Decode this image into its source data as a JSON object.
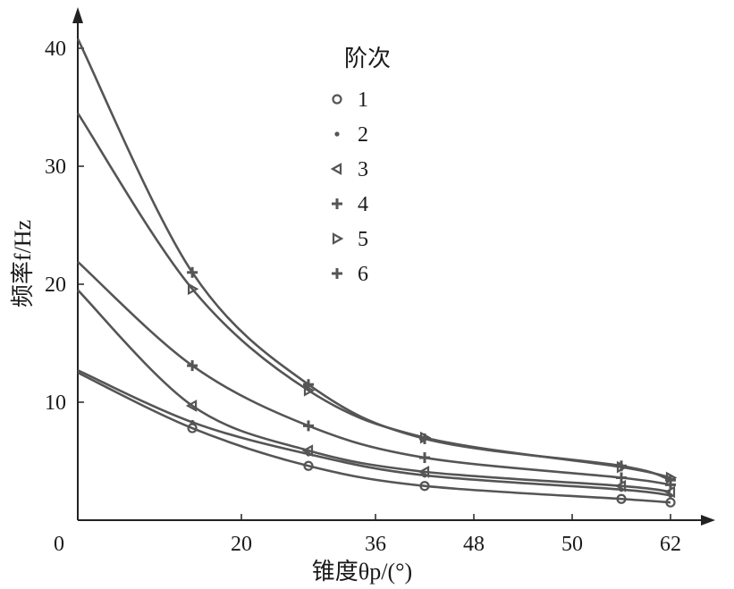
{
  "chart_data": {
    "type": "line",
    "title": "",
    "xlabel": "锥度θp/(°)",
    "ylabel": "频率f/Hz",
    "xlim": [
      0,
      70
    ],
    "ylim": [
      0,
      45
    ],
    "x_ticks": [
      0,
      20,
      36,
      48,
      50,
      62
    ],
    "y_ticks": [
      10,
      20,
      30,
      40
    ],
    "grid": false,
    "legend": {
      "title": "阶次",
      "position": "top-center"
    },
    "series": [
      {
        "name": "1",
        "marker": "circle",
        "x": [
          0,
          14,
          28,
          42,
          56,
          62
        ],
        "y": [
          12.5,
          7.8,
          4.6,
          2.9,
          1.8,
          1.5
        ]
      },
      {
        "name": "2",
        "marker": "dot",
        "x": [
          0,
          14,
          28,
          42,
          56,
          62
        ],
        "y": [
          12.7,
          8.3,
          5.6,
          3.8,
          2.6,
          2.1
        ]
      },
      {
        "name": "3",
        "marker": "triangle-left",
        "x": [
          0,
          14,
          28,
          42,
          56,
          62
        ],
        "y": [
          19.5,
          9.7,
          5.9,
          4.1,
          2.9,
          2.4
        ]
      },
      {
        "name": "4",
        "marker": "plus",
        "x": [
          0,
          14,
          28,
          42,
          56,
          62
        ],
        "y": [
          21.9,
          13.1,
          8.0,
          5.3,
          3.6,
          3.0
        ]
      },
      {
        "name": "5",
        "marker": "triangle-right",
        "x": [
          0,
          14,
          28,
          42,
          56,
          62
        ],
        "y": [
          34.5,
          19.6,
          11.0,
          7.0,
          4.5,
          3.6
        ]
      },
      {
        "name": "6",
        "marker": "plus",
        "x": [
          0,
          14,
          28,
          42,
          56,
          62
        ],
        "y": [
          40.8,
          21.0,
          11.5,
          6.9,
          4.6,
          3.4
        ]
      }
    ]
  }
}
